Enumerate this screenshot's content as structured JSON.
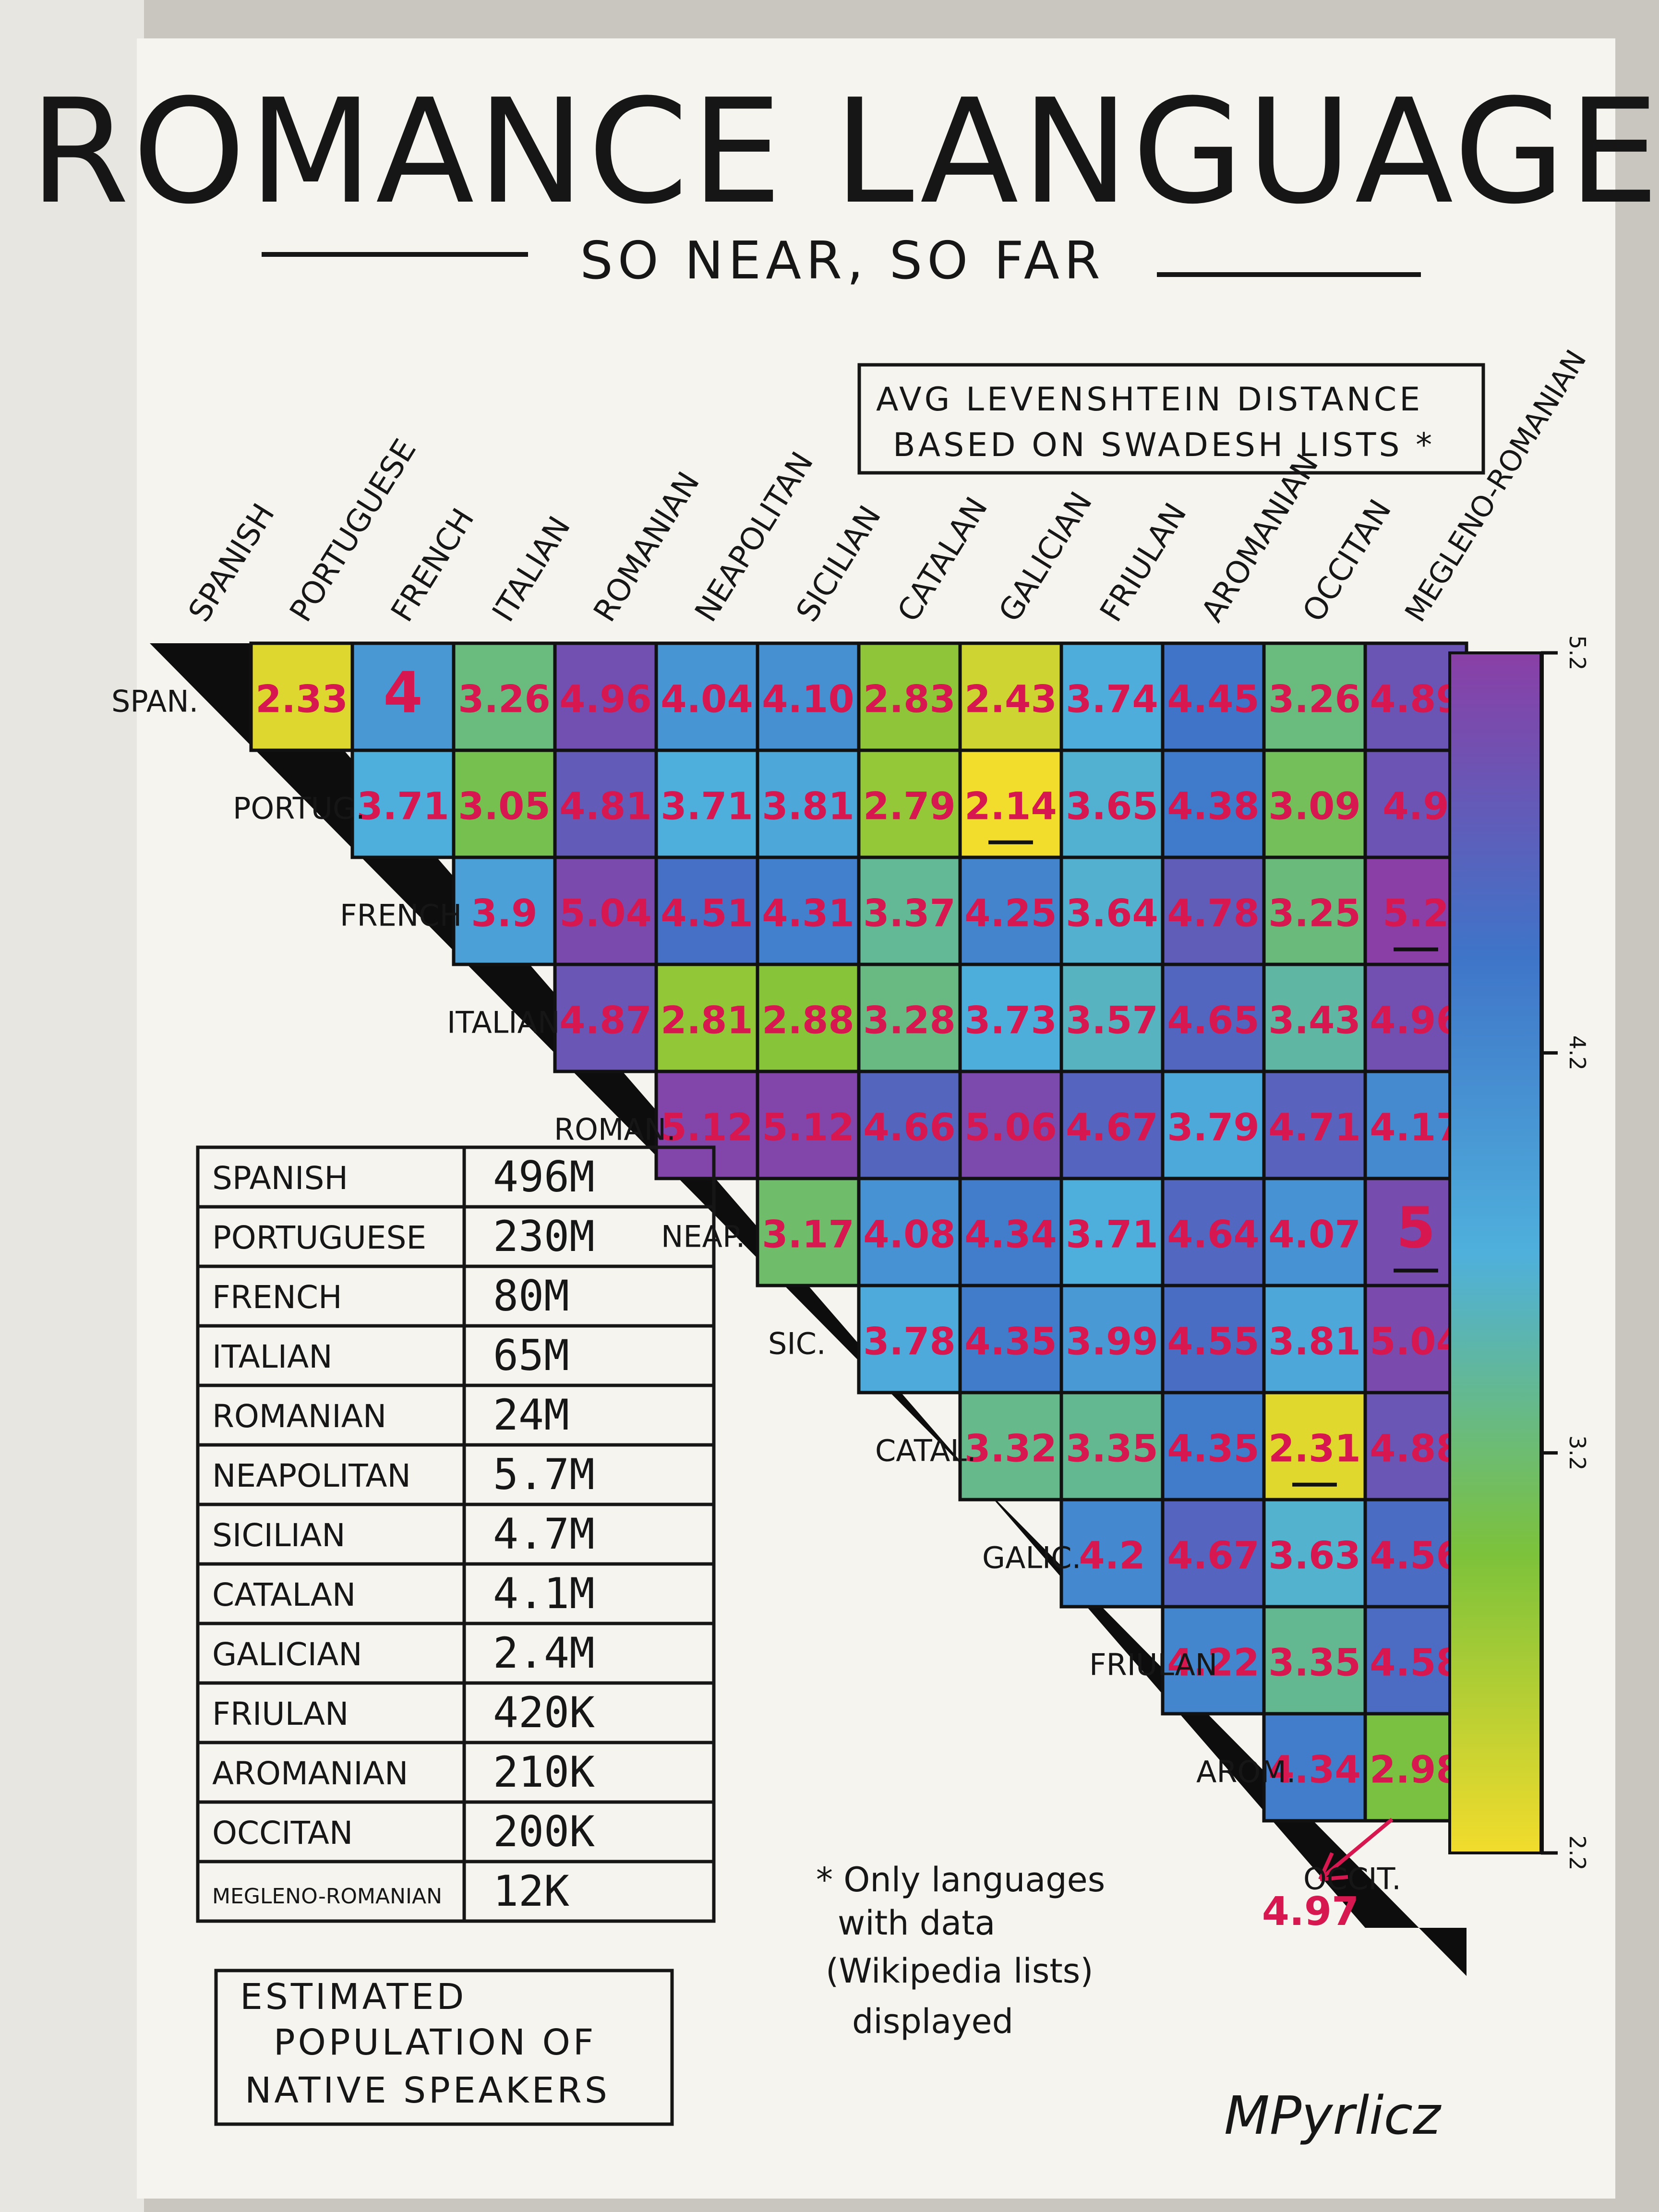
{
  "header": {
    "title": "ROMANCE LANGUAGES",
    "subtitle": "SO NEAR, SO FAR"
  },
  "note_box": {
    "line1": "AVG LEVENSHTEIN DISTANCE",
    "line2": "BASED ON SWADESH LISTS *"
  },
  "footnote": {
    "line1": "* Only languages",
    "line2": "with data",
    "line3": "(Wikipedia lists)",
    "line4": "displayed"
  },
  "signature": "MPyrlicz",
  "population_table": {
    "caption": "ESTIMATED POPULATION OF NATIVE SPEAKERS",
    "caption_line1": "ESTIMATED",
    "caption_line2": "POPULATION OF",
    "caption_line3": "NATIVE SPEAKERS",
    "rows": [
      {
        "name": "SPANISH",
        "value": "496M"
      },
      {
        "name": "PORTUGUESE",
        "value": "230M"
      },
      {
        "name": "FRENCH",
        "value": "80M"
      },
      {
        "name": "ITALIAN",
        "value": "65M"
      },
      {
        "name": "ROMANIAN",
        "value": "24M"
      },
      {
        "name": "NEAPOLITAN",
        "value": "5.7M"
      },
      {
        "name": "SICILIAN",
        "value": "4.7M"
      },
      {
        "name": "CATALAN",
        "value": "4.1M"
      },
      {
        "name": "GALICIAN",
        "value": "2.4M"
      },
      {
        "name": "FRIULAN",
        "value": "420K"
      },
      {
        "name": "AROMANIAN",
        "value": "210K"
      },
      {
        "name": "OCCITAN",
        "value": "200K"
      },
      {
        "name": "MEGLENO-ROMANIAN",
        "value": "12K"
      }
    ]
  },
  "chart_data": {
    "type": "heatmap",
    "title": "ROMANCE LANGUAGES",
    "subtitle": "SO NEAR, SO FAR",
    "column_labels": [
      "SPANISH",
      "PORTUGUESE",
      "FRENCH",
      "ITALIAN",
      "ROMANIAN",
      "NEAPOLITAN",
      "SICILIAN",
      "CATALAN",
      "GALICIAN",
      "FRIULAN",
      "AROMANIAN",
      "OCCITAN",
      "MEGLENO-ROMANIAN"
    ],
    "row_labels": [
      "SPAN.",
      "PORTUG.",
      "FRENCH",
      "ITALIAN",
      "ROMAN.",
      "NEAP.",
      "SIC.",
      "CATAL.",
      "GALIC.",
      "FRIULAN",
      "AROM.",
      "OCCIT."
    ],
    "matrix": [
      [
        "2.33",
        "4",
        "3.26",
        "4.96",
        "4.04",
        "4.10",
        "2.83",
        "2.43",
        "3.74",
        "4.45",
        "3.26",
        "4.89"
      ],
      [
        "3.71",
        "3.05",
        "4.81",
        "3.71",
        "3.81",
        "2.79",
        "2.14",
        "3.65",
        "4.38",
        "3.09",
        "4.9"
      ],
      [
        "3.9",
        "5.04",
        "4.51",
        "4.31",
        "3.37",
        "4.25",
        "3.64",
        "4.78",
        "3.25",
        "5.2"
      ],
      [
        "4.87",
        "2.81",
        "2.88",
        "3.28",
        "3.73",
        "3.57",
        "4.65",
        "3.43",
        "4.96"
      ],
      [
        "5.12",
        "5.12",
        "4.66",
        "5.06",
        "4.67",
        "3.79",
        "4.71",
        "4.17"
      ],
      [
        "3.17",
        "4.08",
        "4.34",
        "3.71",
        "4.64",
        "4.07",
        "5"
      ],
      [
        "3.78",
        "4.35",
        "3.99",
        "4.55",
        "3.81",
        "5.04"
      ],
      [
        "3.32",
        "3.35",
        "4.35",
        "2.31",
        "4.88"
      ],
      [
        "4.2",
        "4.67",
        "3.63",
        "4.56"
      ],
      [
        "4.22",
        "3.35",
        "4.58"
      ],
      [
        "4.34",
        "2.98"
      ],
      [
        "4.97"
      ]
    ],
    "underlined": [
      "2.14",
      "5.2",
      "5",
      "2.31"
    ],
    "colorbar": {
      "range": [
        2.2,
        5.2
      ],
      "ticks": [
        "5.2",
        "4.2",
        "3.2",
        "2.2"
      ],
      "colors_low_to_high": [
        "#f2dc2c",
        "#7cc23b",
        "#4fb0dc",
        "#3f74c8",
        "#8a3fa6"
      ]
    }
  }
}
